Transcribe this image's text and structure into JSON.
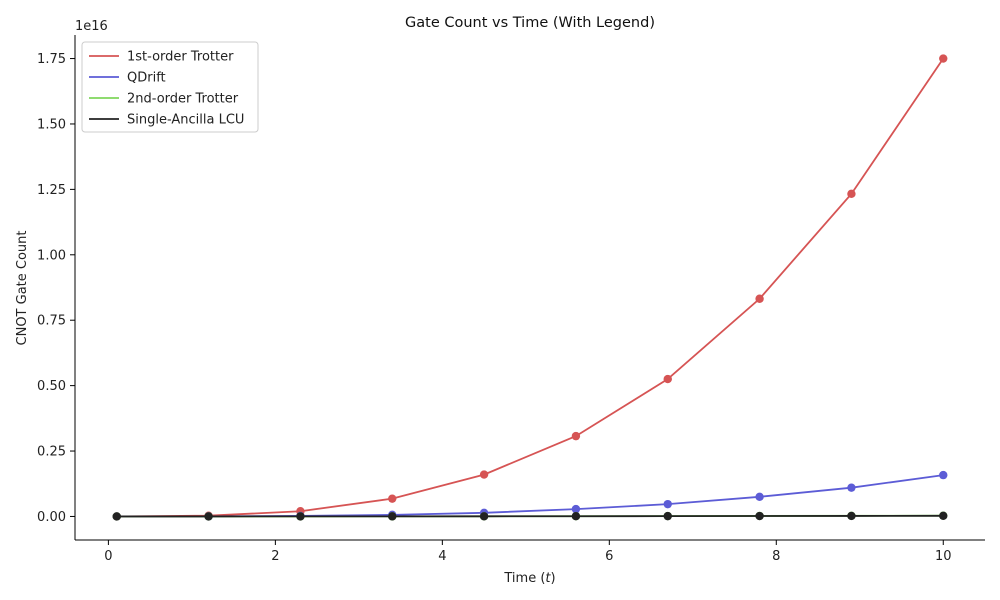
{
  "chart_data": {
    "type": "line",
    "title": "Gate Count vs Time (With Legend)",
    "xlabel": "Time (t)",
    "ylabel": "CNOT Gate Count",
    "y_offset_label": "1e16",
    "y_scale_exponent": 16,
    "xlim": [
      -0.4,
      10.5
    ],
    "ylim": [
      -0.09,
      1.84
    ],
    "x_ticks": [
      0,
      2,
      4,
      6,
      8,
      10
    ],
    "x_tick_labels": [
      "0",
      "2",
      "4",
      "6",
      "8",
      "10"
    ],
    "y_ticks": [
      0,
      0.25,
      0.5,
      0.75,
      1.0,
      1.25,
      1.5,
      1.75
    ],
    "y_tick_labels": [
      "0.00",
      "0.25",
      "0.50",
      "0.75",
      "1.00",
      "1.25",
      "1.50",
      "1.75"
    ],
    "grid": false,
    "legend_position": "top-left",
    "x": [
      0.1,
      1.2,
      2.3,
      3.4,
      4.5,
      5.6,
      6.7,
      7.8,
      8.9,
      10.0
    ],
    "series": [
      {
        "name": "1st-order Trotter",
        "color": "#d65454",
        "values": [
          0.0,
          0.003,
          0.02,
          0.068,
          0.16,
          0.307,
          0.525,
          0.832,
          1.233,
          1.75
        ]
      },
      {
        "name": "QDrift",
        "color": "#5c5cd6",
        "values": [
          0.0,
          0.0003,
          0.002,
          0.006,
          0.014,
          0.028,
          0.047,
          0.075,
          0.11,
          0.158
        ]
      },
      {
        "name": "2nd-order Trotter",
        "color": "#7fd65c",
        "values": [
          0.0,
          2e-05,
          0.0001,
          0.0003,
          0.0006,
          0.001,
          0.0015,
          0.002,
          0.0025,
          0.003
        ]
      },
      {
        "name": "Single-Ancilla LCU",
        "color": "#222222",
        "values": [
          0.0,
          0.0001,
          0.0002,
          0.0004,
          0.0006,
          0.0009,
          0.0012,
          0.0016,
          0.002,
          0.0025
        ]
      }
    ]
  }
}
